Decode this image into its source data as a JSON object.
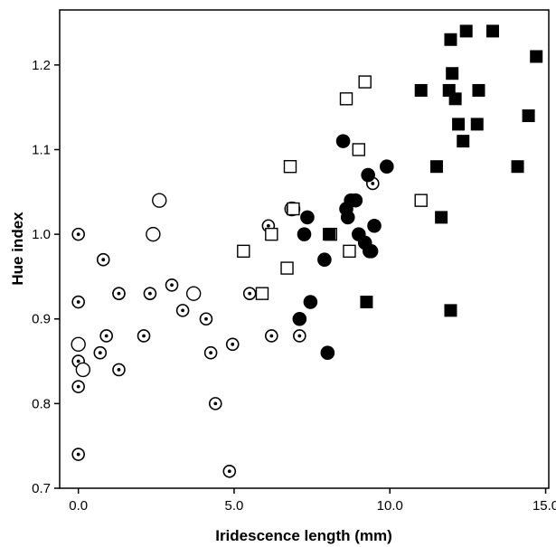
{
  "chart_data": {
    "type": "scatter",
    "title": "",
    "xlabel": "Iridescence length (mm)",
    "ylabel": "Hue index",
    "xlim": [
      -0.6,
      15.1
    ],
    "ylim": [
      0.7,
      1.265
    ],
    "xticks": [
      0.0,
      5.0,
      10.0,
      15.0
    ],
    "xtick_labels": [
      "0.0",
      "5.0",
      "10.0",
      "15.0"
    ],
    "yticks": [
      0.7,
      0.8,
      0.9,
      1.0,
      1.1,
      1.2
    ],
    "ytick_labels": [
      "0.7",
      "0.8",
      "0.9",
      "1.0",
      "1.1",
      "1.2"
    ],
    "grid": false,
    "legend": "none",
    "series": [
      {
        "marker": "open-circle-dot",
        "x": [
          0.0,
          0.0,
          0.0,
          0.0,
          0.0,
          0.8,
          0.9,
          0.7,
          1.3,
          1.3,
          1.3,
          2.1,
          2.3,
          3.0,
          3.35,
          4.1,
          4.25,
          4.4,
          4.85,
          4.95,
          5.5,
          6.1,
          6.2,
          7.1,
          9.45
        ],
        "y": [
          1.0,
          0.92,
          0.85,
          0.82,
          0.74,
          0.97,
          0.88,
          0.86,
          0.93,
          0.93,
          0.84,
          0.88,
          0.93,
          0.94,
          0.91,
          0.9,
          0.86,
          0.8,
          0.72,
          0.87,
          0.93,
          1.01,
          0.88,
          0.88,
          1.06
        ]
      },
      {
        "marker": "open-circle",
        "x": [
          0.0,
          0.15,
          2.4,
          2.6,
          3.7,
          6.85
        ],
        "y": [
          0.87,
          0.84,
          1.0,
          1.04,
          0.93,
          1.03
        ]
      },
      {
        "marker": "filled-circle",
        "x": [
          6.9,
          7.1,
          7.25,
          7.35,
          7.45,
          7.9,
          8.0,
          8.5,
          8.6,
          8.65,
          8.75,
          8.9,
          9.0,
          9.2,
          9.3,
          9.35,
          9.4,
          9.5,
          9.9
        ],
        "y": [
          1.03,
          0.9,
          1.0,
          1.02,
          0.92,
          0.97,
          0.86,
          1.11,
          1.03,
          1.02,
          1.04,
          1.04,
          1.0,
          0.99,
          1.07,
          0.98,
          0.98,
          1.01,
          1.08
        ]
      },
      {
        "marker": "open-square",
        "x": [
          5.3,
          5.9,
          6.2,
          6.7,
          6.8,
          6.9,
          8.1,
          8.6,
          8.7,
          9.0,
          9.2,
          11.0
        ],
        "y": [
          0.98,
          0.93,
          1.0,
          0.96,
          1.08,
          1.03,
          1.0,
          1.16,
          0.98,
          1.1,
          1.18,
          1.04
        ]
      },
      {
        "marker": "filled-square",
        "x": [
          8.05,
          9.25,
          11.0,
          11.5,
          11.65,
          11.9,
          11.95,
          11.95,
          12.0,
          12.1,
          12.2,
          12.35,
          12.45,
          12.8,
          12.85,
          13.3,
          14.1,
          14.45,
          14.7
        ],
        "y": [
          1.0,
          0.92,
          1.17,
          1.08,
          1.02,
          1.17,
          1.23,
          0.91,
          1.19,
          1.16,
          1.13,
          1.11,
          1.24,
          1.13,
          1.17,
          1.24,
          1.08,
          1.14,
          1.21
        ]
      }
    ]
  }
}
